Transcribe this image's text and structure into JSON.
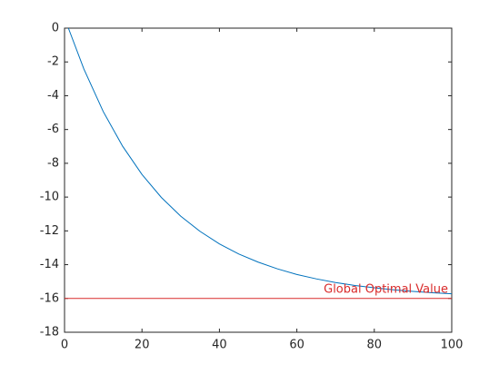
{
  "chart_data": {
    "type": "line",
    "x": [
      1,
      5,
      10,
      15,
      20,
      25,
      30,
      35,
      40,
      45,
      50,
      55,
      60,
      65,
      70,
      75,
      80,
      85,
      90,
      95,
      100
    ],
    "series": [
      {
        "color": "#0072bd",
        "values": [
          0,
          -2.42,
          -4.94,
          -6.99,
          -8.66,
          -10.02,
          -11.13,
          -12.03,
          -12.77,
          -13.37,
          -13.85,
          -14.25,
          -14.58,
          -14.84,
          -15.06,
          -15.23,
          -15.37,
          -15.49,
          -15.58,
          -15.66,
          -15.72
        ]
      }
    ],
    "reference_line": {
      "value": -16,
      "label": "Global Optimal Value",
      "color": "#d92b2b"
    },
    "xlim": [
      0,
      100
    ],
    "xticks": [
      0,
      20,
      40,
      60,
      80,
      100
    ],
    "ylim": [
      -18,
      0
    ],
    "yticks": [
      -18,
      -16,
      -14,
      -12,
      -10,
      -8,
      -6,
      -4,
      -2,
      0
    ],
    "grid": false
  }
}
